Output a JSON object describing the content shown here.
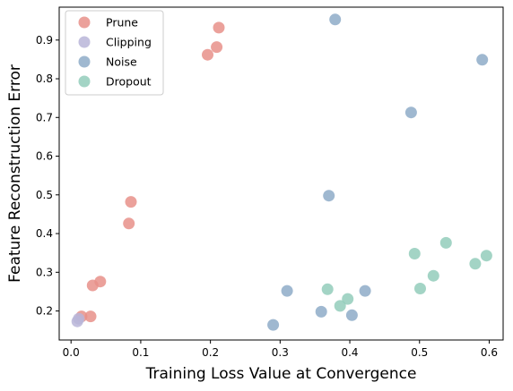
{
  "chart_data": {
    "type": "scatter",
    "title": "",
    "xlabel": "Training Loss Value at Convergence",
    "ylabel": "Feature Reconstruction Error",
    "xlim": [
      -0.017,
      0.62
    ],
    "ylim": [
      0.125,
      0.985
    ],
    "xticks": [
      0.0,
      0.1,
      0.2,
      0.3,
      0.4,
      0.5,
      0.6
    ],
    "xtick_labels": [
      "0.0",
      "0.1",
      "0.2",
      "0.3",
      "0.4",
      "0.5",
      "0.6"
    ],
    "yticks": [
      0.2,
      0.3,
      0.4,
      0.5,
      0.6,
      0.7,
      0.8,
      0.9
    ],
    "ytick_labels": [
      "0.2",
      "0.3",
      "0.4",
      "0.5",
      "0.6",
      "0.7",
      "0.8",
      "0.9"
    ],
    "grid": false,
    "legend_position": "top-left",
    "series": [
      {
        "name": "Prune",
        "color": "#e8908a",
        "points": [
          [
            0.212,
            0.932
          ],
          [
            0.209,
            0.882
          ],
          [
            0.196,
            0.862
          ],
          [
            0.086,
            0.482
          ],
          [
            0.083,
            0.426
          ],
          [
            0.042,
            0.276
          ],
          [
            0.031,
            0.266
          ],
          [
            0.015,
            0.186
          ],
          [
            0.028,
            0.186
          ]
        ]
      },
      {
        "name": "Clipping",
        "color": "#b9b5d8",
        "points": [
          [
            0.009,
            0.173
          ],
          [
            0.011,
            0.18
          ]
        ]
      },
      {
        "name": "Noise",
        "color": "#8eabc8",
        "points": [
          [
            0.379,
            0.953
          ],
          [
            0.59,
            0.849
          ],
          [
            0.488,
            0.713
          ],
          [
            0.37,
            0.498
          ],
          [
            0.31,
            0.252
          ],
          [
            0.422,
            0.252
          ],
          [
            0.359,
            0.198
          ],
          [
            0.403,
            0.189
          ],
          [
            0.29,
            0.164
          ]
        ]
      },
      {
        "name": "Dropout",
        "color": "#93cdbb",
        "points": [
          [
            0.538,
            0.376
          ],
          [
            0.493,
            0.348
          ],
          [
            0.596,
            0.343
          ],
          [
            0.58,
            0.322
          ],
          [
            0.52,
            0.291
          ],
          [
            0.501,
            0.258
          ],
          [
            0.368,
            0.256
          ],
          [
            0.397,
            0.231
          ],
          [
            0.386,
            0.213
          ]
        ]
      }
    ]
  }
}
